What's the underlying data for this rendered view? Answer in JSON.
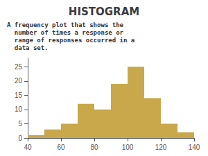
{
  "chart_data": {
    "type": "histogram",
    "title": "HISTOGRAM",
    "annotations": [
      "A frequency plot that shows the",
      "  number of times a response or",
      "  range of responses occurred in a",
      "  data set."
    ],
    "bins": [
      40,
      50,
      60,
      70,
      80,
      90,
      100,
      110,
      120,
      130,
      140
    ],
    "values": [
      1,
      3,
      5,
      12,
      10,
      19,
      25,
      14,
      5,
      2
    ],
    "color": "#c8a84b",
    "xlim": [
      40,
      140
    ],
    "xticks": [
      40,
      60,
      80,
      100,
      120,
      140
    ],
    "ylim": [
      0,
      28
    ],
    "yticks": [
      0,
      5,
      10,
      15,
      20,
      25
    ],
    "grid": false
  }
}
